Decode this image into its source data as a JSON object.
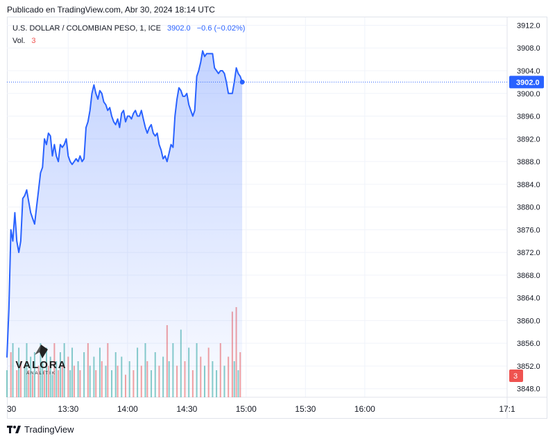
{
  "published": "Publicado en TradingView.com, Abr 30, 2024 18:14 UTC",
  "legend": {
    "symbol": "U.S. DOLLAR / COLOMBIAN PESO, 1, ICE",
    "last": "3902.0",
    "change": "−0.6 (−0.02%)",
    "vol_label": "Vol.",
    "vol_value": "3"
  },
  "logo": {
    "word": "VALORA",
    "sub": "ANALITIK"
  },
  "footer": {
    "brand": "TradingView"
  },
  "colors": {
    "line": "#2962ff",
    "up": "#26a69a",
    "down": "#ef5350",
    "grid": "#f0f3fa",
    "badge": "#2962ff"
  },
  "chart_data": {
    "type": "area",
    "y_axis_labels": [
      "3912.0",
      "3908.0",
      "3904.0",
      "3900.0",
      "3896.0",
      "3892.0",
      "3888.0",
      "3884.0",
      "3880.0",
      "3876.0",
      "3872.0",
      "3868.0",
      "3864.0",
      "3860.0",
      "3856.0",
      "3852.0",
      "3848.0"
    ],
    "x_axis_labels": [
      "30",
      "13:30",
      "14:00",
      "14:30",
      "15:00",
      "15:30",
      "16:00",
      "17:1"
    ],
    "ylim": [
      3846.5,
      3913.4
    ],
    "x_time_range": [
      "12:59",
      "17:12"
    ],
    "last_price_badge": "3902.0",
    "volume_badge": "3",
    "price_series": [
      [
        "12:59",
        3853.5
      ],
      [
        "13:00",
        3862
      ],
      [
        "13:01",
        3876
      ],
      [
        "13:02",
        3874
      ],
      [
        "13:03",
        3879
      ],
      [
        "13:04",
        3874
      ],
      [
        "13:05",
        3872
      ],
      [
        "13:06",
        3874
      ],
      [
        "13:07",
        3881.5
      ],
      [
        "13:08",
        3882
      ],
      [
        "13:09",
        3883
      ],
      [
        "13:10",
        3881
      ],
      [
        "13:11",
        3879
      ],
      [
        "13:12",
        3878
      ],
      [
        "13:13",
        3877
      ],
      [
        "13:14",
        3880
      ],
      [
        "13:15",
        3883
      ],
      [
        "13:16",
        3886
      ],
      [
        "13:17",
        3887
      ],
      [
        "13:18",
        3892
      ],
      [
        "13:19",
        3891
      ],
      [
        "13:20",
        3893
      ],
      [
        "13:21",
        3892.5
      ],
      [
        "13:22",
        3889
      ],
      [
        "13:23",
        3891
      ],
      [
        "13:24",
        3889
      ],
      [
        "13:25",
        3888
      ],
      [
        "13:26",
        3891
      ],
      [
        "13:27",
        3890.5
      ],
      [
        "13:28",
        3891
      ],
      [
        "13:29",
        3892
      ],
      [
        "13:30",
        3889
      ],
      [
        "13:31",
        3888
      ],
      [
        "13:32",
        3887.5
      ],
      [
        "13:33",
        3888
      ],
      [
        "13:34",
        3888.5
      ],
      [
        "13:35",
        3888
      ],
      [
        "13:36",
        3889
      ],
      [
        "13:37",
        3888
      ],
      [
        "13:38",
        3888.5
      ],
      [
        "13:39",
        3894
      ],
      [
        "13:40",
        3895
      ],
      [
        "13:41",
        3897
      ],
      [
        "13:42",
        3900
      ],
      [
        "13:43",
        3901.5
      ],
      [
        "13:44",
        3900
      ],
      [
        "13:45",
        3899
      ],
      [
        "13:46",
        3900.5
      ],
      [
        "13:47",
        3900
      ],
      [
        "13:48",
        3898.5
      ],
      [
        "13:49",
        3898
      ],
      [
        "13:50",
        3897
      ],
      [
        "13:51",
        3897.5
      ],
      [
        "13:52",
        3896
      ],
      [
        "13:53",
        3895
      ],
      [
        "13:54",
        3894.5
      ],
      [
        "13:55",
        3895.5
      ],
      [
        "13:56",
        3894
      ],
      [
        "13:57",
        3896.5
      ],
      [
        "13:58",
        3897
      ],
      [
        "13:59",
        3895
      ],
      [
        "14:00",
        3896
      ],
      [
        "14:01",
        3896
      ],
      [
        "14:02",
        3895.5
      ],
      [
        "14:03",
        3896.5
      ],
      [
        "14:04",
        3897
      ],
      [
        "14:05",
        3896
      ],
      [
        "14:06",
        3896
      ],
      [
        "14:07",
        3897
      ],
      [
        "14:08",
        3895.5
      ],
      [
        "14:09",
        3894
      ],
      [
        "14:10",
        3893
      ],
      [
        "14:11",
        3894
      ],
      [
        "14:12",
        3894.5
      ],
      [
        "14:13",
        3893
      ],
      [
        "14:14",
        3892.5
      ],
      [
        "14:15",
        3893
      ],
      [
        "14:16",
        3891
      ],
      [
        "14:17",
        3890
      ],
      [
        "14:18",
        3888.5
      ],
      [
        "14:19",
        3889
      ],
      [
        "14:20",
        3888
      ],
      [
        "14:21",
        3889.5
      ],
      [
        "14:22",
        3891
      ],
      [
        "14:23",
        3890.5
      ],
      [
        "14:24",
        3896
      ],
      [
        "14:25",
        3899
      ],
      [
        "14:26",
        3901
      ],
      [
        "14:27",
        3900.5
      ],
      [
        "14:28",
        3899.5
      ],
      [
        "14:29",
        3899.5
      ],
      [
        "14:30",
        3900
      ],
      [
        "14:31",
        3898
      ],
      [
        "14:32",
        3897
      ],
      [
        "14:33",
        3896
      ],
      [
        "14:34",
        3897
      ],
      [
        "14:35",
        3903
      ],
      [
        "14:36",
        3904
      ],
      [
        "14:37",
        3905.5
      ],
      [
        "14:38",
        3907.5
      ],
      [
        "14:39",
        3906.5
      ],
      [
        "14:40",
        3907
      ],
      [
        "14:41",
        3907
      ],
      [
        "14:42",
        3907
      ],
      [
        "14:43",
        3907
      ],
      [
        "14:44",
        3904.5
      ],
      [
        "14:45",
        3904
      ],
      [
        "14:46",
        3903.5
      ],
      [
        "14:47",
        3904
      ],
      [
        "14:48",
        3904
      ],
      [
        "14:49",
        3903.5
      ],
      [
        "14:50",
        3902
      ],
      [
        "14:51",
        3900
      ],
      [
        "14:52",
        3900
      ],
      [
        "14:53",
        3900
      ],
      [
        "14:54",
        3902
      ],
      [
        "14:55",
        3904.5
      ],
      [
        "14:56",
        3903.5
      ],
      [
        "14:57",
        3903
      ],
      [
        "14:58",
        3902
      ]
    ],
    "volume_series_note": "",
    "volume_bars": [
      [
        "12:59",
        0.3,
        "up"
      ],
      [
        "13:01",
        0.5,
        "down"
      ],
      [
        "13:02",
        0.6,
        "up"
      ],
      [
        "13:04",
        0.3,
        "down"
      ],
      [
        "13:05",
        0.55,
        "up"
      ],
      [
        "13:06",
        0.4,
        "down"
      ],
      [
        "13:08",
        0.35,
        "up"
      ],
      [
        "13:09",
        0.6,
        "up"
      ],
      [
        "13:10",
        0.3,
        "down"
      ],
      [
        "13:11",
        0.45,
        "up"
      ],
      [
        "13:12",
        0.25,
        "down"
      ],
      [
        "13:13",
        0.5,
        "up"
      ],
      [
        "13:15",
        0.35,
        "down"
      ],
      [
        "13:16",
        0.6,
        "up"
      ],
      [
        "13:17",
        0.4,
        "up"
      ],
      [
        "13:18",
        0.3,
        "down"
      ],
      [
        "13:19",
        0.55,
        "up"
      ],
      [
        "13:20",
        0.35,
        "down"
      ],
      [
        "13:21",
        0.45,
        "up"
      ],
      [
        "13:22",
        0.25,
        "up"
      ],
      [
        "13:23",
        0.6,
        "down"
      ],
      [
        "13:24",
        0.4,
        "up"
      ],
      [
        "13:25",
        0.3,
        "down"
      ],
      [
        "13:26",
        0.5,
        "up"
      ],
      [
        "13:27",
        0.35,
        "down"
      ],
      [
        "13:28",
        0.6,
        "up"
      ],
      [
        "13:30",
        0.45,
        "down"
      ],
      [
        "13:31",
        0.3,
        "up"
      ],
      [
        "13:32",
        0.55,
        "up"
      ],
      [
        "13:33",
        0.35,
        "down"
      ],
      [
        "13:35",
        0.4,
        "up"
      ],
      [
        "13:36",
        0.3,
        "down"
      ],
      [
        "13:38",
        0.5,
        "up"
      ],
      [
        "13:40",
        0.6,
        "down"
      ],
      [
        "13:41",
        0.35,
        "up"
      ],
      [
        "13:43",
        0.45,
        "up"
      ],
      [
        "13:44",
        0.3,
        "down"
      ],
      [
        "13:46",
        0.55,
        "up"
      ],
      [
        "13:47",
        0.4,
        "down"
      ],
      [
        "13:49",
        0.35,
        "up"
      ],
      [
        "13:50",
        0.6,
        "down"
      ],
      [
        "13:52",
        0.3,
        "up"
      ],
      [
        "13:54",
        0.5,
        "up"
      ],
      [
        "13:55",
        0.35,
        "down"
      ],
      [
        "13:57",
        0.45,
        "up"
      ],
      [
        "13:59",
        0.25,
        "down"
      ],
      [
        "14:01",
        0.4,
        "up"
      ],
      [
        "14:03",
        0.3,
        "down"
      ],
      [
        "14:05",
        0.55,
        "up"
      ],
      [
        "14:07",
        0.35,
        "down"
      ],
      [
        "14:09",
        0.6,
        "up"
      ],
      [
        "14:10",
        0.4,
        "down"
      ],
      [
        "14:12",
        0.3,
        "up"
      ],
      [
        "14:14",
        0.5,
        "up"
      ],
      [
        "14:16",
        0.35,
        "down"
      ],
      [
        "14:18",
        0.45,
        "up"
      ],
      [
        "14:20",
        0.8,
        "down"
      ],
      [
        "14:21",
        0.4,
        "up"
      ],
      [
        "14:23",
        0.6,
        "up"
      ],
      [
        "14:25",
        0.35,
        "down"
      ],
      [
        "14:27",
        0.75,
        "up"
      ],
      [
        "14:29",
        0.4,
        "down"
      ],
      [
        "14:31",
        0.55,
        "up"
      ],
      [
        "14:33",
        0.3,
        "down"
      ],
      [
        "14:35",
        0.6,
        "up"
      ],
      [
        "14:37",
        0.45,
        "down"
      ],
      [
        "14:39",
        0.35,
        "up"
      ],
      [
        "14:41",
        0.55,
        "down"
      ],
      [
        "14:43",
        0.4,
        "up"
      ],
      [
        "14:45",
        0.3,
        "up"
      ],
      [
        "14:47",
        0.6,
        "down"
      ],
      [
        "14:49",
        0.35,
        "up"
      ],
      [
        "14:51",
        0.45,
        "down"
      ],
      [
        "14:53",
        0.95,
        "down"
      ],
      [
        "14:54",
        0.4,
        "up"
      ],
      [
        "14:55",
        1.0,
        "down"
      ],
      [
        "14:56",
        0.3,
        "up"
      ],
      [
        "14:57",
        0.5,
        "down"
      ]
    ]
  }
}
